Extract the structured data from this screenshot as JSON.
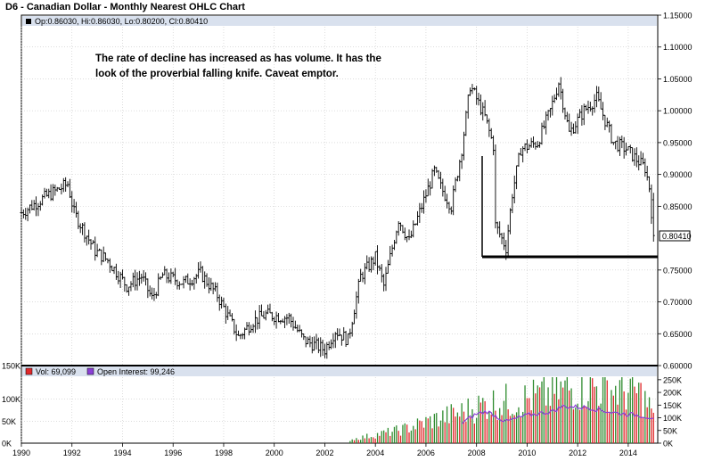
{
  "title": "D6 - Canadian Dollar - Monthly Nearest OHLC Chart",
  "price_panel": {
    "ohlc_label": "Op:0.86030, Hi:0.86030, Lo:0.80200, Cl:0.80410",
    "last_price_label": "0.80410",
    "annotation_line1": "The rate of decline has increased as has volume. It has the",
    "annotation_line2": "look of the proverbial falling knife.  Caveat emptor.",
    "y_ticks": [
      "1.15000",
      "1.10000",
      "1.05000",
      "1.00000",
      "0.95000",
      "0.90000",
      "0.85000",
      "0.75000",
      "0.70000",
      "0.65000",
      "0.60000"
    ],
    "support_level": 0.769
  },
  "volume_panel": {
    "vol_label": "Vol: 69,099",
    "oi_label": "Open Interest: 99,246",
    "left_ticks": [
      "150K",
      "100K",
      "50K",
      "0K"
    ],
    "right_ticks": [
      "250K",
      "200K",
      "150K",
      "100K",
      "50K",
      "0K"
    ]
  },
  "x_ticks": [
    "1990",
    "1992",
    "1994",
    "1996",
    "1998",
    "2000",
    "2002",
    "2004",
    "2006",
    "2008",
    "2010",
    "2012",
    "2014"
  ],
  "colors": {
    "up": "#2e8b2e",
    "down": "#e0282a",
    "oi": "#8a3fd6",
    "header": "#d9e1ee"
  },
  "chart_data": {
    "type": "ohlc",
    "frequency": "monthly",
    "anchors": [
      [
        "1990-01",
        0.84
      ],
      [
        "1991-01",
        0.866
      ],
      [
        "1991-11",
        0.885
      ],
      [
        "1992-02",
        0.84
      ],
      [
        "1992-12",
        0.78
      ],
      [
        "1993-06",
        0.765
      ],
      [
        "1994-03",
        0.725
      ],
      [
        "1994-10",
        0.74
      ],
      [
        "1995-03",
        0.705
      ],
      [
        "1995-08",
        0.742
      ],
      [
        "1996-06",
        0.73
      ],
      [
        "1997-02",
        0.745
      ],
      [
        "1997-10",
        0.71
      ],
      [
        "1998-08",
        0.645
      ],
      [
        "1999-03",
        0.67
      ],
      [
        "1999-09",
        0.68
      ],
      [
        "2000-08",
        0.675
      ],
      [
        "2001-03",
        0.64
      ],
      [
        "2002-01",
        0.625
      ],
      [
        "2002-06",
        0.655
      ],
      [
        "2002-12",
        0.64
      ],
      [
        "2003-06",
        0.74
      ],
      [
        "2004-01",
        0.77
      ],
      [
        "2004-05",
        0.725
      ],
      [
        "2004-12",
        0.83
      ],
      [
        "2005-05",
        0.795
      ],
      [
        "2006-05",
        0.905
      ],
      [
        "2006-08",
        0.88
      ],
      [
        "2007-01",
        0.85
      ],
      [
        "2007-06",
        0.94
      ],
      [
        "2007-10",
        1.04
      ],
      [
        "2008-05",
        0.99
      ],
      [
        "2008-09",
        0.945
      ],
      [
        "2008-10",
        0.82
      ],
      [
        "2009-03",
        0.785
      ],
      [
        "2009-06",
        0.87
      ],
      [
        "2009-10",
        0.94
      ],
      [
        "2010-06",
        0.95
      ],
      [
        "2010-12",
        1.0
      ],
      [
        "2011-04",
        1.045
      ],
      [
        "2011-09",
        0.965
      ],
      [
        "2012-04",
        1.0
      ],
      [
        "2012-10",
        1.02
      ],
      [
        "2013-06",
        0.95
      ],
      [
        "2013-12",
        0.94
      ],
      [
        "2014-06",
        0.92
      ],
      [
        "2014-09",
        0.91
      ],
      [
        "2014-11",
        0.88
      ],
      [
        "2015-01",
        0.804
      ]
    ],
    "volume": {
      "start": "2003-01",
      "anchors": [
        [
          "2003-01",
          8000
        ],
        [
          "2005-01",
          30000
        ],
        [
          "2006-06",
          55000
        ],
        [
          "2007-06",
          70000
        ],
        [
          "2008-06",
          90000
        ],
        [
          "2010-01",
          100000
        ],
        [
          "2011-06",
          120000
        ],
        [
          "2012-06",
          130000
        ],
        [
          "2014-06",
          115000
        ],
        [
          "2015-01",
          69099
        ]
      ]
    },
    "open_interest": {
      "start": "2007-06",
      "anchors": [
        [
          "2007-06",
          80000
        ],
        [
          "2008-01",
          115000
        ],
        [
          "2008-06",
          125000
        ],
        [
          "2009-03",
          85000
        ],
        [
          "2010-01",
          110000
        ],
        [
          "2011-01",
          125000
        ],
        [
          "2011-06",
          145000
        ],
        [
          "2012-06",
          140000
        ],
        [
          "2013-06",
          120000
        ],
        [
          "2014-06",
          110000
        ],
        [
          "2015-01",
          99246
        ]
      ]
    },
    "price_ylim": [
      0.6,
      1.15
    ],
    "volume_ylim_left": [
      0,
      150000
    ],
    "oi_ylim_right": [
      0,
      260000
    ],
    "xlim": [
      "1990-01",
      "2015-03"
    ]
  }
}
